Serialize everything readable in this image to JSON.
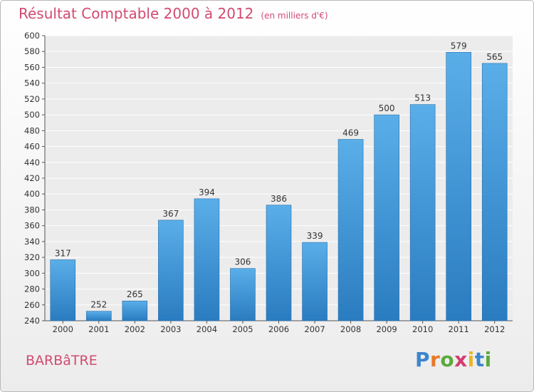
{
  "header": {
    "title": "Résultat Comptable 2000 à 2012",
    "subtitle": "(en milliers d'€)"
  },
  "place_name": "BARBâTRE",
  "logo": {
    "letters": [
      "P",
      "r",
      "o",
      "x",
      "i",
      "t",
      "i"
    ],
    "colors": [
      "#3c86cc",
      "#e8792a",
      "#5aaa3c",
      "#d23c6e",
      "#e8b52a",
      "#3c86cc",
      "#5aaa3c"
    ]
  },
  "chart_data": {
    "type": "bar",
    "categories": [
      "2000",
      "2001",
      "2002",
      "2003",
      "2004",
      "2005",
      "2006",
      "2007",
      "2008",
      "2009",
      "2010",
      "2011",
      "2012"
    ],
    "values": [
      317,
      252,
      265,
      367,
      394,
      306,
      386,
      339,
      469,
      500,
      513,
      579,
      565
    ],
    "ylim": [
      240,
      600
    ],
    "ytick_step": 20,
    "grid": true,
    "bar_color_top": "#5aaee8",
    "bar_color_bottom": "#2a7cc0"
  }
}
